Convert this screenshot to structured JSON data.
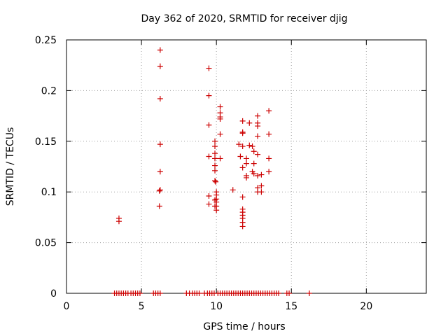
{
  "chart_data": {
    "type": "scatter",
    "title": "Day 362 of 2020, SRMTID for receiver djig",
    "xlabel": "GPS time / hours",
    "ylabel": "SRMTID / TECUs",
    "xlim": [
      0,
      24
    ],
    "ylim": [
      0,
      0.25
    ],
    "xticks": [
      0,
      5,
      10,
      15,
      20
    ],
    "xtick_labels": [
      "0",
      "5",
      "10",
      "15",
      "20"
    ],
    "yticks": [
      0,
      0.05,
      0.1,
      0.15,
      0.2,
      0.25
    ],
    "ytick_labels": [
      "0",
      "0.05",
      "0.1",
      "0.15",
      "0.2",
      "0.25"
    ],
    "grid": true,
    "marker": "plus",
    "marker_color": "#cc0000",
    "points": [
      [
        3.5,
        0.074
      ],
      [
        3.5,
        0.071
      ],
      [
        6.25,
        0.24
      ],
      [
        6.25,
        0.224
      ],
      [
        6.25,
        0.192
      ],
      [
        6.25,
        0.147
      ],
      [
        6.25,
        0.12
      ],
      [
        6.25,
        0.102
      ],
      [
        6.2,
        0.101
      ],
      [
        6.2,
        0.086
      ],
      [
        9.5,
        0.222
      ],
      [
        9.5,
        0.195
      ],
      [
        9.5,
        0.166
      ],
      [
        9.5,
        0.135
      ],
      [
        9.5,
        0.096
      ],
      [
        9.5,
        0.088
      ],
      [
        9.9,
        0.15
      ],
      [
        9.9,
        0.145
      ],
      [
        9.9,
        0.138
      ],
      [
        9.9,
        0.133
      ],
      [
        9.9,
        0.126
      ],
      [
        9.9,
        0.121
      ],
      [
        9.9,
        0.111
      ],
      [
        9.95,
        0.11
      ],
      [
        10.0,
        0.1
      ],
      [
        10.0,
        0.097
      ],
      [
        10.0,
        0.093
      ],
      [
        10.0,
        0.09
      ],
      [
        10.0,
        0.086
      ],
      [
        10.0,
        0.082
      ],
      [
        9.9,
        0.086
      ],
      [
        9.9,
        0.092
      ],
      [
        10.25,
        0.184
      ],
      [
        10.25,
        0.178
      ],
      [
        10.25,
        0.174
      ],
      [
        10.25,
        0.172
      ],
      [
        10.25,
        0.157
      ],
      [
        10.25,
        0.133
      ],
      [
        11.1,
        0.102
      ],
      [
        11.5,
        0.147
      ],
      [
        11.6,
        0.135
      ],
      [
        11.75,
        0.17
      ],
      [
        11.75,
        0.159
      ],
      [
        11.75,
        0.158
      ],
      [
        11.75,
        0.145
      ],
      [
        11.75,
        0.124
      ],
      [
        11.75,
        0.095
      ],
      [
        11.75,
        0.083
      ],
      [
        11.75,
        0.08
      ],
      [
        11.75,
        0.077
      ],
      [
        11.75,
        0.074
      ],
      [
        11.75,
        0.07
      ],
      [
        11.75,
        0.066
      ],
      [
        12.0,
        0.133
      ],
      [
        12.0,
        0.128
      ],
      [
        12.0,
        0.116
      ],
      [
        12.0,
        0.114
      ],
      [
        12.2,
        0.168
      ],
      [
        12.2,
        0.146
      ],
      [
        12.4,
        0.145
      ],
      [
        12.5,
        0.14
      ],
      [
        12.5,
        0.128
      ],
      [
        12.5,
        0.118
      ],
      [
        12.4,
        0.12
      ],
      [
        12.75,
        0.175
      ],
      [
        12.75,
        0.168
      ],
      [
        12.75,
        0.165
      ],
      [
        12.75,
        0.155
      ],
      [
        12.75,
        0.137
      ],
      [
        12.75,
        0.116
      ],
      [
        12.75,
        0.104
      ],
      [
        12.75,
        0.1
      ],
      [
        13.0,
        0.117
      ],
      [
        13.0,
        0.106
      ],
      [
        13.0,
        0.1
      ],
      [
        13.5,
        0.18
      ],
      [
        13.5,
        0.157
      ],
      [
        13.5,
        0.133
      ],
      [
        13.5,
        0.12
      ],
      [
        3.2,
        0
      ],
      [
        3.35,
        0
      ],
      [
        3.5,
        0
      ],
      [
        3.65,
        0
      ],
      [
        3.8,
        0
      ],
      [
        3.95,
        0
      ],
      [
        4.1,
        0
      ],
      [
        4.3,
        0
      ],
      [
        4.45,
        0
      ],
      [
        4.6,
        0
      ],
      [
        4.75,
        0
      ],
      [
        4.9,
        0
      ],
      [
        5.8,
        0
      ],
      [
        5.95,
        0
      ],
      [
        6.1,
        0
      ],
      [
        6.25,
        0
      ],
      [
        8.0,
        0
      ],
      [
        8.2,
        0
      ],
      [
        8.4,
        0
      ],
      [
        8.55,
        0
      ],
      [
        8.7,
        0
      ],
      [
        8.85,
        0
      ],
      [
        9.2,
        0
      ],
      [
        9.4,
        0
      ],
      [
        9.55,
        0
      ],
      [
        9.7,
        0
      ],
      [
        9.85,
        0
      ],
      [
        10.1,
        0
      ],
      [
        10.25,
        0
      ],
      [
        10.4,
        0
      ],
      [
        10.55,
        0
      ],
      [
        10.7,
        0
      ],
      [
        10.85,
        0
      ],
      [
        11.0,
        0
      ],
      [
        11.15,
        0
      ],
      [
        11.3,
        0
      ],
      [
        11.45,
        0
      ],
      [
        11.6,
        0
      ],
      [
        11.75,
        0
      ],
      [
        11.9,
        0
      ],
      [
        12.05,
        0
      ],
      [
        12.2,
        0
      ],
      [
        12.35,
        0
      ],
      [
        12.5,
        0
      ],
      [
        12.65,
        0
      ],
      [
        12.8,
        0
      ],
      [
        12.95,
        0
      ],
      [
        13.1,
        0
      ],
      [
        13.25,
        0
      ],
      [
        13.4,
        0
      ],
      [
        13.55,
        0
      ],
      [
        13.7,
        0
      ],
      [
        13.85,
        0
      ],
      [
        14.0,
        0
      ],
      [
        14.15,
        0
      ],
      [
        14.7,
        0
      ],
      [
        14.85,
        0
      ],
      [
        16.2,
        0
      ]
    ]
  }
}
